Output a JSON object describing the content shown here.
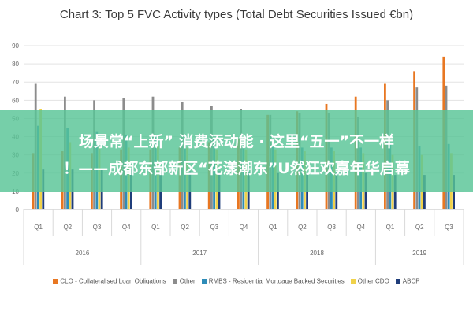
{
  "chart_data": {
    "type": "bar",
    "title": "Chart 3: Top 5 FVC Activity types (Total Debt Securities Issued €bn)",
    "xlabel": "",
    "ylabel": "",
    "ylim": [
      0,
      90
    ],
    "yticks": [
      "0",
      "10",
      "20",
      "30",
      "40",
      "50",
      "60",
      "70",
      "80",
      "90"
    ],
    "grid": true,
    "legend_position": "bottom",
    "categories": [
      "Q1",
      "Q2",
      "Q3",
      "Q4",
      "Q1",
      "Q2",
      "Q3",
      "Q4",
      "Q1",
      "Q2",
      "Q3",
      "Q4",
      "Q1",
      "Q2",
      "Q3"
    ],
    "groups": [
      {
        "label": "2016",
        "count": 4
      },
      {
        "label": "2017",
        "count": 4
      },
      {
        "label": "2018",
        "count": 4
      },
      {
        "label": "2019",
        "count": 3
      }
    ],
    "series": [
      {
        "name": "CLO - Collateralised Loan Obligations",
        "color": "#e87722",
        "values": [
          31,
          32,
          31,
          33,
          33,
          34,
          37,
          39,
          52,
          54,
          58,
          62,
          69,
          76,
          84
        ]
      },
      {
        "name": "Other",
        "color": "#8c8c8c",
        "values": [
          69,
          62,
          60,
          61,
          62,
          59,
          57,
          55,
          52,
          53,
          53,
          51,
          60,
          67,
          68
        ]
      },
      {
        "name": "RMBS - Residential Mortgage Backed Securities",
        "color": "#2e8cb8",
        "values": [
          46,
          45,
          43,
          41,
          40,
          40,
          39,
          37,
          35,
          34,
          34,
          34,
          36,
          35,
          36
        ]
      },
      {
        "name": "Other CDO",
        "color": "#f0d24a",
        "values": [
          55,
          37,
          34,
          34,
          35,
          34,
          33,
          33,
          33,
          32,
          32,
          31,
          30,
          30,
          31
        ]
      },
      {
        "name": "ABCP",
        "color": "#1f3d7a",
        "values": [
          22,
          22,
          22,
          22,
          21,
          21,
          21,
          21,
          20,
          20,
          20,
          20,
          19,
          19,
          19
        ]
      }
    ]
  },
  "banner": {
    "line1": "场景常“上新” 消费添动能 · 这里“五一”不一样",
    "line2": "！——成都东部新区“花漾潮东”U然狂欢嘉年华启幕"
  }
}
